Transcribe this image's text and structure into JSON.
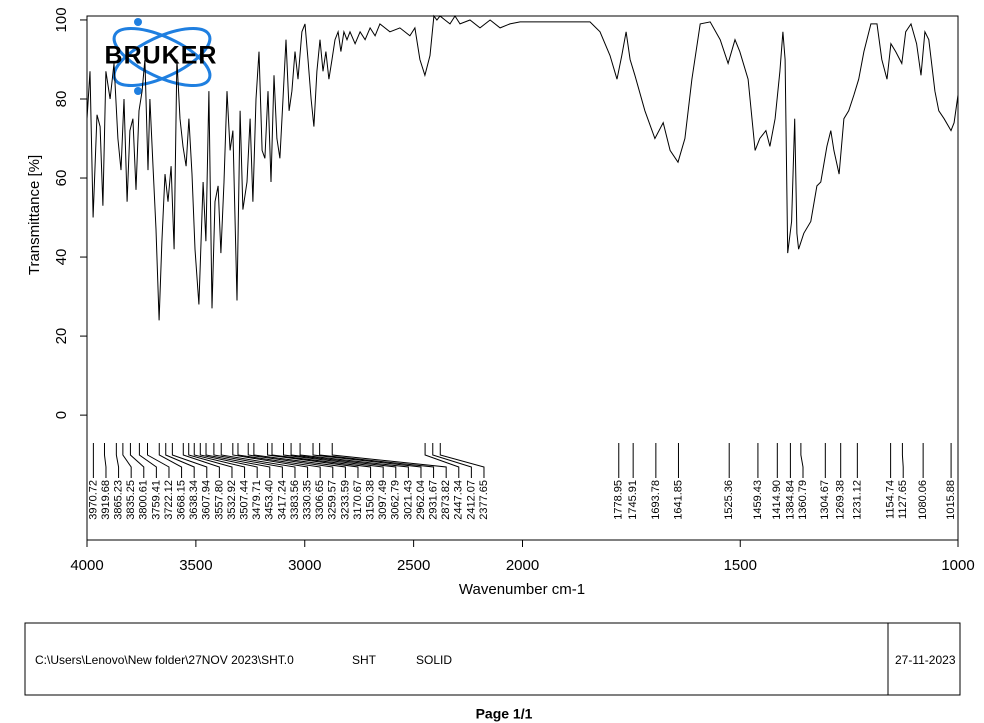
{
  "chart_data": {
    "type": "line",
    "x_label": "Wavenumber cm-1",
    "y_label": "Transmittance [%]",
    "logo": "BRUKER",
    "color": "#000000",
    "xlim": [
      4000,
      1000
    ],
    "x_scale_break": 2000,
    "xticks": [
      4000,
      3500,
      3000,
      2500,
      2000,
      1500,
      1000
    ],
    "ylim": [
      -31.6,
      101
    ],
    "yticks": [
      0,
      20,
      40,
      60,
      80,
      100
    ],
    "x": [
      4000,
      3986,
      3972,
      3954,
      3940,
      3927,
      3913,
      3894,
      3876,
      3858,
      3844,
      3830,
      3816,
      3803,
      3789,
      3775,
      3761,
      3747,
      3734,
      3720,
      3711,
      3697,
      3683,
      3669,
      3656,
      3642,
      3628,
      3614,
      3600,
      3587,
      3573,
      3559,
      3545,
      3532,
      3518,
      3504,
      3486,
      3467,
      3454,
      3440,
      3426,
      3412,
      3398,
      3385,
      3371,
      3357,
      3343,
      3330,
      3311,
      3297,
      3284,
      3265,
      3251,
      3238,
      3224,
      3210,
      3196,
      3183,
      3169,
      3155,
      3141,
      3128,
      3114,
      3100,
      3086,
      3072,
      3059,
      3045,
      3031,
      3013,
      2999,
      2985,
      2971,
      2958,
      2944,
      2930,
      2916,
      2903,
      2889,
      2875,
      2861,
      2847,
      2834,
      2820,
      2806,
      2792,
      2769,
      2746,
      2723,
      2700,
      2677,
      2655,
      2609,
      2563,
      2517,
      2494,
      2471,
      2448,
      2425,
      2407,
      2393,
      2379,
      2356,
      2333,
      2310,
      2287,
      2241,
      2195,
      2149,
      2103,
      2058,
      2011,
      1914,
      1845,
      1822,
      1799,
      1783,
      1772,
      1762,
      1753,
      1742,
      1719,
      1696,
      1677,
      1661,
      1643,
      1627,
      1611,
      1592,
      1569,
      1546,
      1528,
      1512,
      1501,
      1482,
      1466,
      1455,
      1441,
      1432,
      1420,
      1409,
      1402,
      1397,
      1391,
      1382,
      1375,
      1370,
      1366,
      1354,
      1338,
      1324,
      1315,
      1301,
      1292,
      1285,
      1273,
      1262,
      1251,
      1239,
      1228,
      1216,
      1200,
      1186,
      1175,
      1163,
      1154,
      1143,
      1129,
      1120,
      1108,
      1095,
      1085,
      1076,
      1067,
      1053,
      1044,
      1032,
      1016,
      1009,
      1000
    ],
    "values": [
      75,
      87,
      50,
      76,
      73,
      53,
      87,
      80,
      89,
      70,
      62,
      80,
      54,
      72,
      75,
      57,
      77,
      82,
      90,
      62,
      80,
      63,
      47,
      24,
      44,
      61,
      54,
      63,
      42,
      90,
      75,
      68,
      63,
      75,
      61,
      42,
      28,
      59,
      44,
      82,
      27,
      54,
      58,
      41,
      59,
      82,
      67,
      72,
      29,
      77,
      52,
      59,
      75,
      54,
      80,
      92,
      67,
      65,
      82,
      59,
      86,
      70,
      65,
      80,
      95,
      77,
      82,
      92,
      85,
      97,
      99,
      90,
      80,
      73,
      87,
      95,
      87,
      92,
      85,
      90,
      95,
      97,
      92,
      97,
      95,
      97,
      94,
      97,
      95,
      98,
      96,
      99,
      97,
      98,
      96,
      98,
      90,
      86,
      91,
      101,
      100,
      101,
      100,
      99,
      101,
      99,
      100,
      98,
      100,
      98,
      99,
      99.5,
      99.5,
      99.5,
      97,
      91,
      85,
      91,
      97,
      90,
      86,
      77,
      70,
      74,
      67,
      64,
      70,
      85,
      99,
      99.5,
      95,
      89,
      95,
      92,
      85,
      67,
      70,
      72,
      68,
      75,
      87,
      97,
      90,
      41,
      49,
      75,
      46,
      42,
      46,
      49,
      58,
      59,
      68,
      72,
      67,
      61,
      75,
      77,
      81,
      85,
      92,
      99,
      99,
      90,
      85,
      94,
      92,
      89,
      97,
      99,
      94,
      86,
      97,
      95,
      82,
      77,
      75,
      72,
      74,
      81
    ],
    "peaks": [
      3970.72,
      3919.68,
      3865.23,
      3835.25,
      3800.61,
      3759.41,
      3722.12,
      3668.15,
      3638.34,
      3607.94,
      {
        "value": 3557.8,
        "label": "3557.80"
      },
      3532.92,
      3507.44,
      3479.71,
      {
        "value": 3453.4,
        "label": "3453.40"
      },
      3417.24,
      3383.56,
      3330.35,
      3306.65,
      3259.57,
      3233.59,
      3170.67,
      3150.38,
      3097.49,
      3062.79,
      3021.43,
      2962.04,
      2931.67,
      2873.82,
      2447.34,
      2412.07,
      2377.65,
      1778.95,
      1745.91,
      1693.78,
      1641.85,
      1525.36,
      1459.43,
      {
        "value": 1414.9,
        "label": "1414.90"
      },
      1384.84,
      1360.79,
      1304.67,
      1269.38,
      1231.12,
      1154.74,
      1127.65,
      1080.06,
      1015.88
    ]
  },
  "footer": {
    "path": "C:\\Users\\Lenovo\\New folder\\27NOV 2023\\SHT.0",
    "sample": "SHT",
    "state": "SOLID",
    "date": "27-11-2023"
  },
  "page_label": "Page 1/1"
}
